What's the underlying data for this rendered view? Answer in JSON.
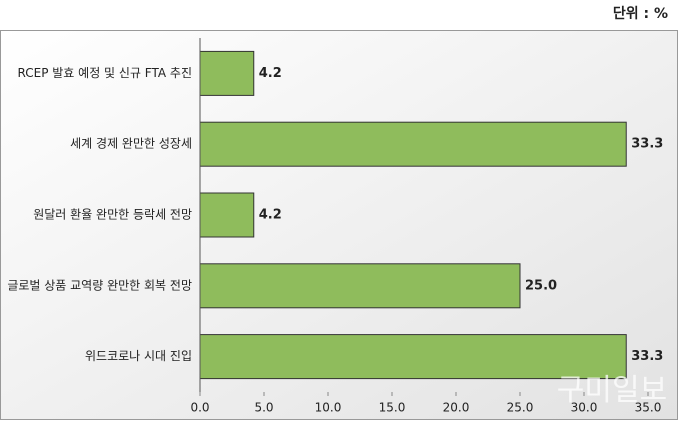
{
  "chart_data": {
    "type": "hbar",
    "unit_note": "단위 : %",
    "categories": [
      "RCEP 발효 예정 및 신규 FTA 추진",
      "세계 경제 완만한 성장세",
      "원달러 환율 완만한 등락세 전망",
      "글로벌 상품 교역량 완만한 회복 전망",
      "위드코로나 시대 진입"
    ],
    "values": [
      4.2,
      33.3,
      4.2,
      25.0,
      33.3
    ],
    "value_labels": [
      "4.2",
      "33.3",
      "4.2",
      "25.0",
      "33.3"
    ],
    "color": "#8fbc5c",
    "xlim": [
      0,
      35
    ],
    "xticks": [
      {
        "value": 0,
        "label": "0.0"
      },
      {
        "value": 5,
        "label": "5.0"
      },
      {
        "value": 10,
        "label": "10.0"
      },
      {
        "value": 15,
        "label": "15.0"
      },
      {
        "value": 20,
        "label": "20.0"
      },
      {
        "value": 25,
        "label": "25.0"
      },
      {
        "value": 30,
        "label": "30.0"
      },
      {
        "value": 35,
        "label": "35.0"
      }
    ],
    "watermark": "구미일보"
  }
}
